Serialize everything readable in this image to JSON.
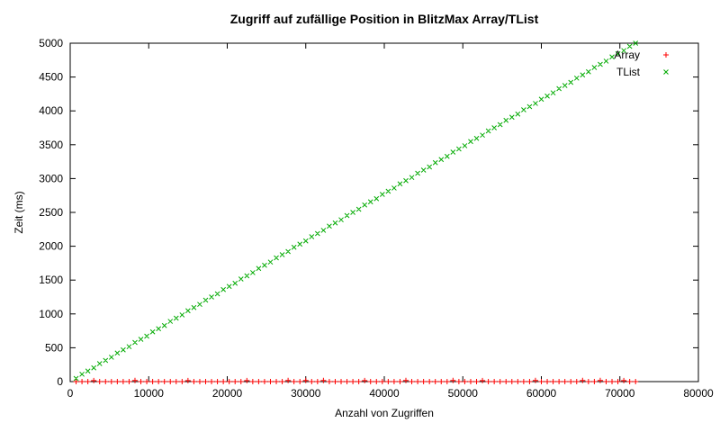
{
  "chart_data": {
    "type": "scatter",
    "title": "Zugriff auf zufällige Position in BlitzMax Array/TList",
    "xlabel": "Anzahl von Zugriffen",
    "ylabel": "Zeit (ms)",
    "xlim": [
      0,
      80000
    ],
    "ylim": [
      0,
      5000
    ],
    "xticks": [
      0,
      10000,
      20000,
      30000,
      40000,
      50000,
      60000,
      70000,
      80000
    ],
    "yticks": [
      0,
      500,
      1000,
      1500,
      2000,
      2500,
      3000,
      3500,
      4000,
      4500,
      5000
    ],
    "grid": false,
    "legend_position": "top-right-inside",
    "frame_color": "#000000",
    "x": [
      750,
      1500,
      2250,
      3000,
      3750,
      4500,
      5250,
      6000,
      6750,
      7500,
      8250,
      9000,
      9750,
      10500,
      11250,
      12000,
      12750,
      13500,
      14250,
      15000,
      15750,
      16500,
      17250,
      18000,
      18750,
      19500,
      20250,
      21000,
      21750,
      22500,
      23250,
      24000,
      24750,
      25500,
      26250,
      27000,
      27750,
      28500,
      29250,
      30000,
      30750,
      31500,
      32250,
      33000,
      33750,
      34500,
      35250,
      36000,
      36750,
      37500,
      38250,
      39000,
      39750,
      40500,
      41250,
      42000,
      42750,
      43500,
      44250,
      45000,
      45750,
      46500,
      47250,
      48000,
      48750,
      49500,
      50250,
      51000,
      51750,
      52500,
      53250,
      54000,
      54750,
      55500,
      56250,
      57000,
      57750,
      58500,
      59250,
      60000,
      60750,
      61500,
      62250,
      63000,
      63750,
      64500,
      65250,
      66000,
      66750,
      67500,
      68250,
      69000,
      69750,
      70500,
      71250,
      72000
    ],
    "series": [
      {
        "name": "Array",
        "marker": "plus",
        "color": "#ff0000",
        "values": [
          0,
          0,
          0,
          15,
          0,
          0,
          0,
          0,
          0,
          0,
          16,
          0,
          0,
          0,
          0,
          0,
          0,
          0,
          0,
          15,
          0,
          0,
          0,
          0,
          0,
          0,
          0,
          0,
          0,
          15,
          0,
          0,
          0,
          0,
          0,
          0,
          16,
          0,
          0,
          16,
          0,
          0,
          16,
          0,
          0,
          0,
          0,
          0,
          0,
          15,
          0,
          0,
          0,
          0,
          0,
          0,
          16,
          0,
          0,
          0,
          0,
          0,
          0,
          0,
          16,
          0,
          0,
          0,
          0,
          15,
          0,
          0,
          0,
          0,
          0,
          0,
          0,
          0,
          16,
          0,
          0,
          0,
          0,
          0,
          0,
          0,
          16,
          0,
          0,
          16,
          0,
          0,
          0,
          15,
          0,
          0
        ]
      },
      {
        "name": "TList",
        "marker": "cross",
        "color": "#00aa00",
        "values": [
          47,
          109,
          156,
          203,
          266,
          312,
          360,
          422,
          469,
          516,
          578,
          625,
          672,
          735,
          781,
          828,
          890,
          937,
          985,
          1047,
          1094,
          1141,
          1203,
          1250,
          1297,
          1360,
          1406,
          1453,
          1516,
          1562,
          1610,
          1672,
          1719,
          1766,
          1828,
          1875,
          1922,
          1985,
          2031,
          2078,
          2141,
          2187,
          2235,
          2297,
          2344,
          2391,
          2453,
          2500,
          2547,
          2610,
          2656,
          2703,
          2766,
          2812,
          2860,
          2922,
          2969,
          3016,
          3078,
          3125,
          3172,
          3235,
          3281,
          3328,
          3391,
          3437,
          3485,
          3547,
          3594,
          3641,
          3703,
          3750,
          3797,
          3860,
          3906,
          3953,
          4016,
          4062,
          4110,
          4172,
          4219,
          4266,
          4328,
          4375,
          4422,
          4484,
          4531,
          4578,
          4641,
          4687,
          4735,
          4797,
          4844,
          4891,
          4953,
          5000
        ]
      }
    ]
  }
}
